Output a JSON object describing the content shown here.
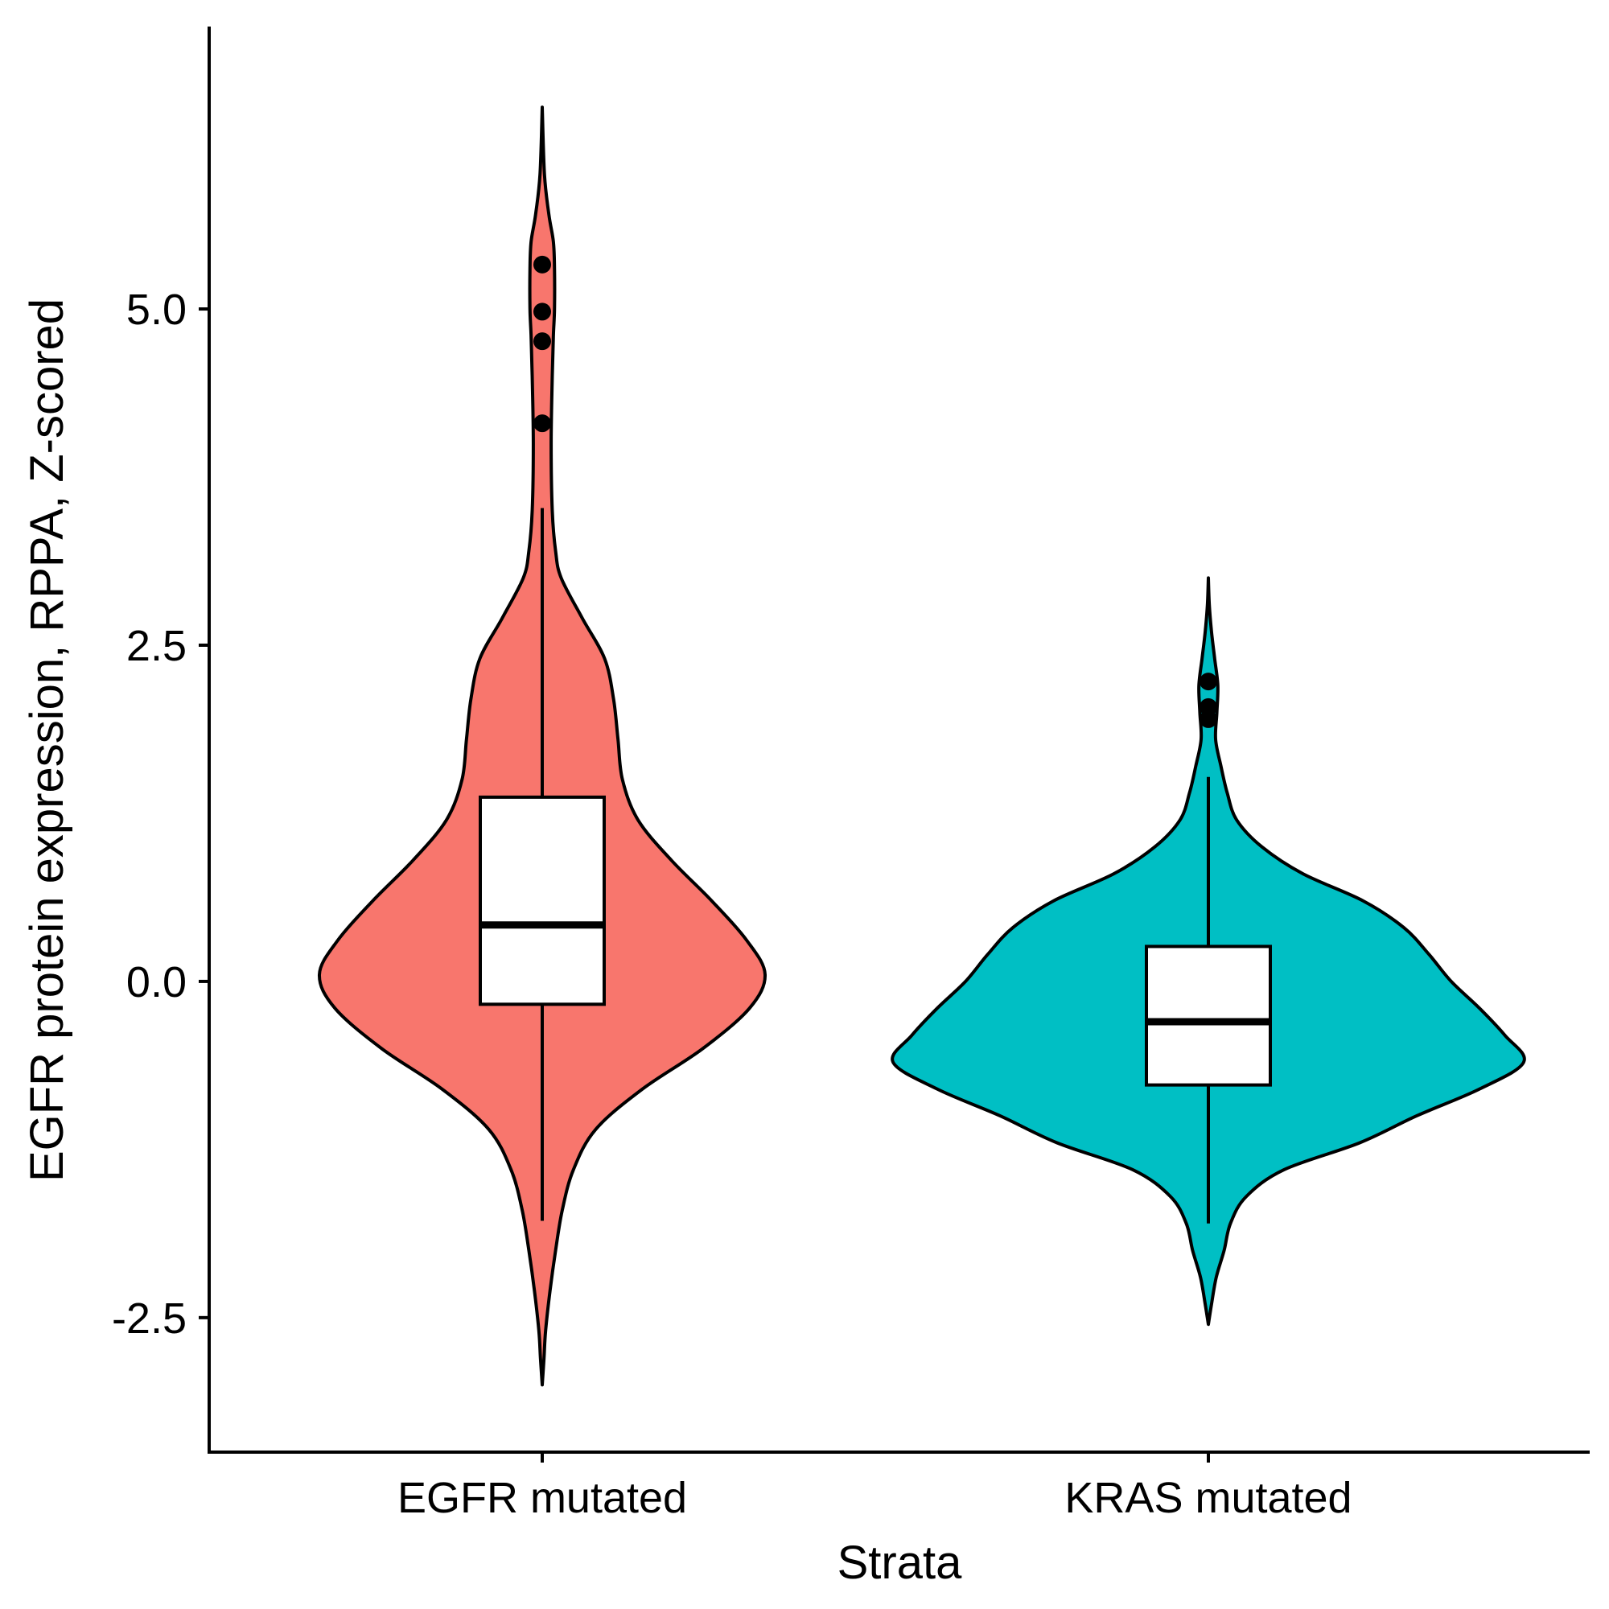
{
  "chart_data": {
    "type": "violin",
    "xlabel": "Strata",
    "ylabel": "EGFR protein expression, RPPA, Z-scored",
    "categories": [
      "EGFR mutated",
      "KRAS mutated"
    ],
    "ylim": [
      -3.5,
      7.1
    ],
    "yticks": [
      -2.5,
      0.0,
      2.5,
      5.0
    ],
    "ytick_labels": [
      "-2.5",
      "0.0",
      "2.5",
      "5.0"
    ],
    "grid": false,
    "legend": "none",
    "series": [
      {
        "category": "EGFR mutated",
        "color": "#F8766D",
        "min": -3.0,
        "max": 6.5,
        "box": {
          "q1": -0.17,
          "median": 0.42,
          "q3": 1.37,
          "whisker_low": -1.78,
          "whisker_high": 3.52
        },
        "outliers": [
          5.33,
          4.98,
          4.76,
          4.15
        ],
        "density": [
          [
            6.5,
            0.0
          ],
          [
            6.0,
            0.01
          ],
          [
            5.7,
            0.03
          ],
          [
            5.5,
            0.05
          ],
          [
            5.3,
            0.055
          ],
          [
            5.0,
            0.055
          ],
          [
            4.8,
            0.05
          ],
          [
            4.5,
            0.045
          ],
          [
            4.0,
            0.04
          ],
          [
            3.5,
            0.045
          ],
          [
            3.2,
            0.06
          ],
          [
            3.0,
            0.085
          ],
          [
            2.7,
            0.18
          ],
          [
            2.4,
            0.28
          ],
          [
            2.1,
            0.32
          ],
          [
            1.8,
            0.34
          ],
          [
            1.5,
            0.36
          ],
          [
            1.2,
            0.43
          ],
          [
            0.9,
            0.58
          ],
          [
            0.6,
            0.76
          ],
          [
            0.3,
            0.92
          ],
          [
            0.05,
            1.0
          ],
          [
            -0.2,
            0.93
          ],
          [
            -0.5,
            0.72
          ],
          [
            -0.8,
            0.45
          ],
          [
            -1.1,
            0.24
          ],
          [
            -1.4,
            0.14
          ],
          [
            -1.7,
            0.09
          ],
          [
            -2.0,
            0.06
          ],
          [
            -2.3,
            0.035
          ],
          [
            -2.6,
            0.015
          ],
          [
            -2.8,
            0.008
          ],
          [
            -3.0,
            0.0
          ]
        ]
      },
      {
        "category": "KRAS mutated",
        "color": "#00BFC4",
        "min": -2.55,
        "max": 3.0,
        "box": {
          "q1": -0.77,
          "median": -0.3,
          "q3": 0.26,
          "whisker_low": -1.8,
          "whisker_high": 1.52
        },
        "outliers": [
          2.23,
          2.04,
          1.95
        ],
        "density": [
          [
            3.0,
            0.0
          ],
          [
            2.8,
            0.003
          ],
          [
            2.6,
            0.01
          ],
          [
            2.4,
            0.02
          ],
          [
            2.2,
            0.03
          ],
          [
            2.0,
            0.027
          ],
          [
            1.8,
            0.023
          ],
          [
            1.6,
            0.04
          ],
          [
            1.4,
            0.06
          ],
          [
            1.2,
            0.09
          ],
          [
            1.0,
            0.17
          ],
          [
            0.8,
            0.3
          ],
          [
            0.6,
            0.49
          ],
          [
            0.4,
            0.62
          ],
          [
            0.2,
            0.7
          ],
          [
            0.0,
            0.77
          ],
          [
            -0.2,
            0.86
          ],
          [
            -0.4,
            0.94
          ],
          [
            -0.6,
            1.0
          ],
          [
            -0.8,
            0.86
          ],
          [
            -1.0,
            0.66
          ],
          [
            -1.2,
            0.48
          ],
          [
            -1.4,
            0.24
          ],
          [
            -1.6,
            0.12
          ],
          [
            -1.8,
            0.07
          ],
          [
            -2.0,
            0.05
          ],
          [
            -2.2,
            0.025
          ],
          [
            -2.4,
            0.01
          ],
          [
            -2.55,
            0.0
          ]
        ]
      }
    ]
  }
}
